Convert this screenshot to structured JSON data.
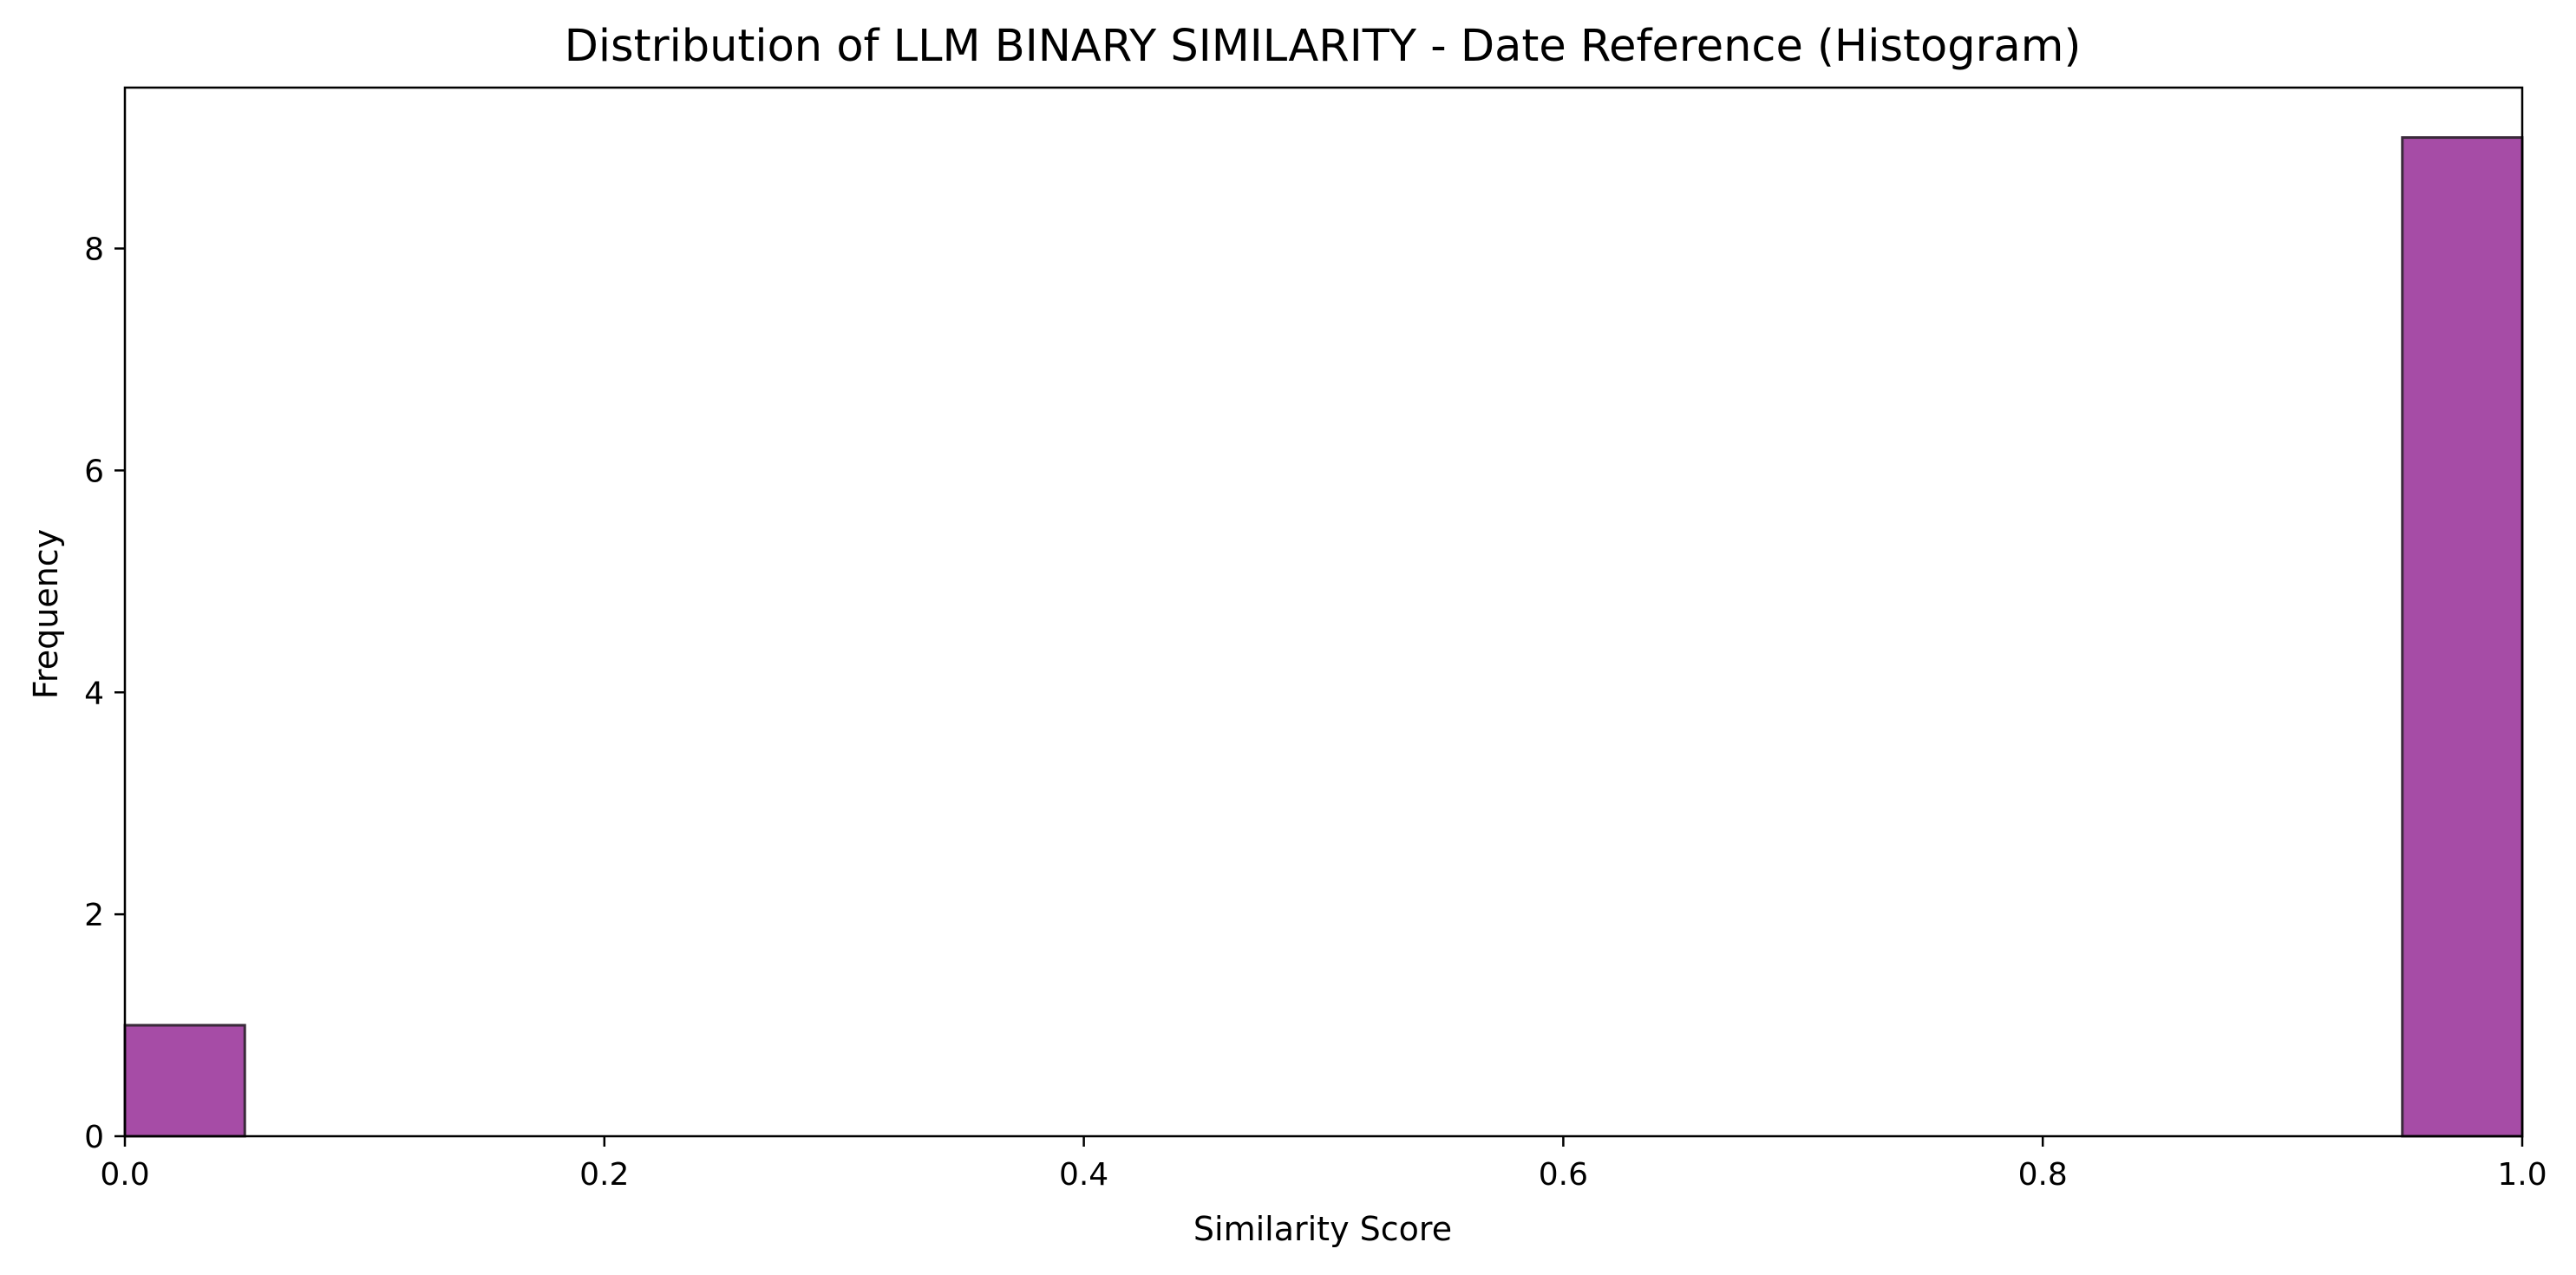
{
  "chart_data": {
    "type": "bar",
    "title": "Distribution of LLM BINARY SIMILARITY - Date Reference (Histogram)",
    "xlabel": "Similarity Score",
    "ylabel": "Frequency",
    "xlim": [
      0.0,
      1.0
    ],
    "ylim": [
      0,
      9.45
    ],
    "x_ticks": [
      {
        "value": 0.0,
        "label": "0.0"
      },
      {
        "value": 0.2,
        "label": "0.2"
      },
      {
        "value": 0.4,
        "label": "0.4"
      },
      {
        "value": 0.6,
        "label": "0.6"
      },
      {
        "value": 0.8,
        "label": "0.8"
      },
      {
        "value": 1.0,
        "label": "1.0"
      }
    ],
    "y_ticks": [
      {
        "value": 0,
        "label": "0"
      },
      {
        "value": 2,
        "label": "2"
      },
      {
        "value": 4,
        "label": "4"
      },
      {
        "value": 6,
        "label": "6"
      },
      {
        "value": 8,
        "label": "8"
      }
    ],
    "bins": [
      {
        "start": 0.0,
        "end": 0.05,
        "count": 1
      },
      {
        "start": 0.95,
        "end": 1.0,
        "count": 9
      }
    ],
    "bar_color": "#a64ca6",
    "bar_edge_color": "#3a2a3a",
    "grid": false,
    "legend": "none"
  }
}
